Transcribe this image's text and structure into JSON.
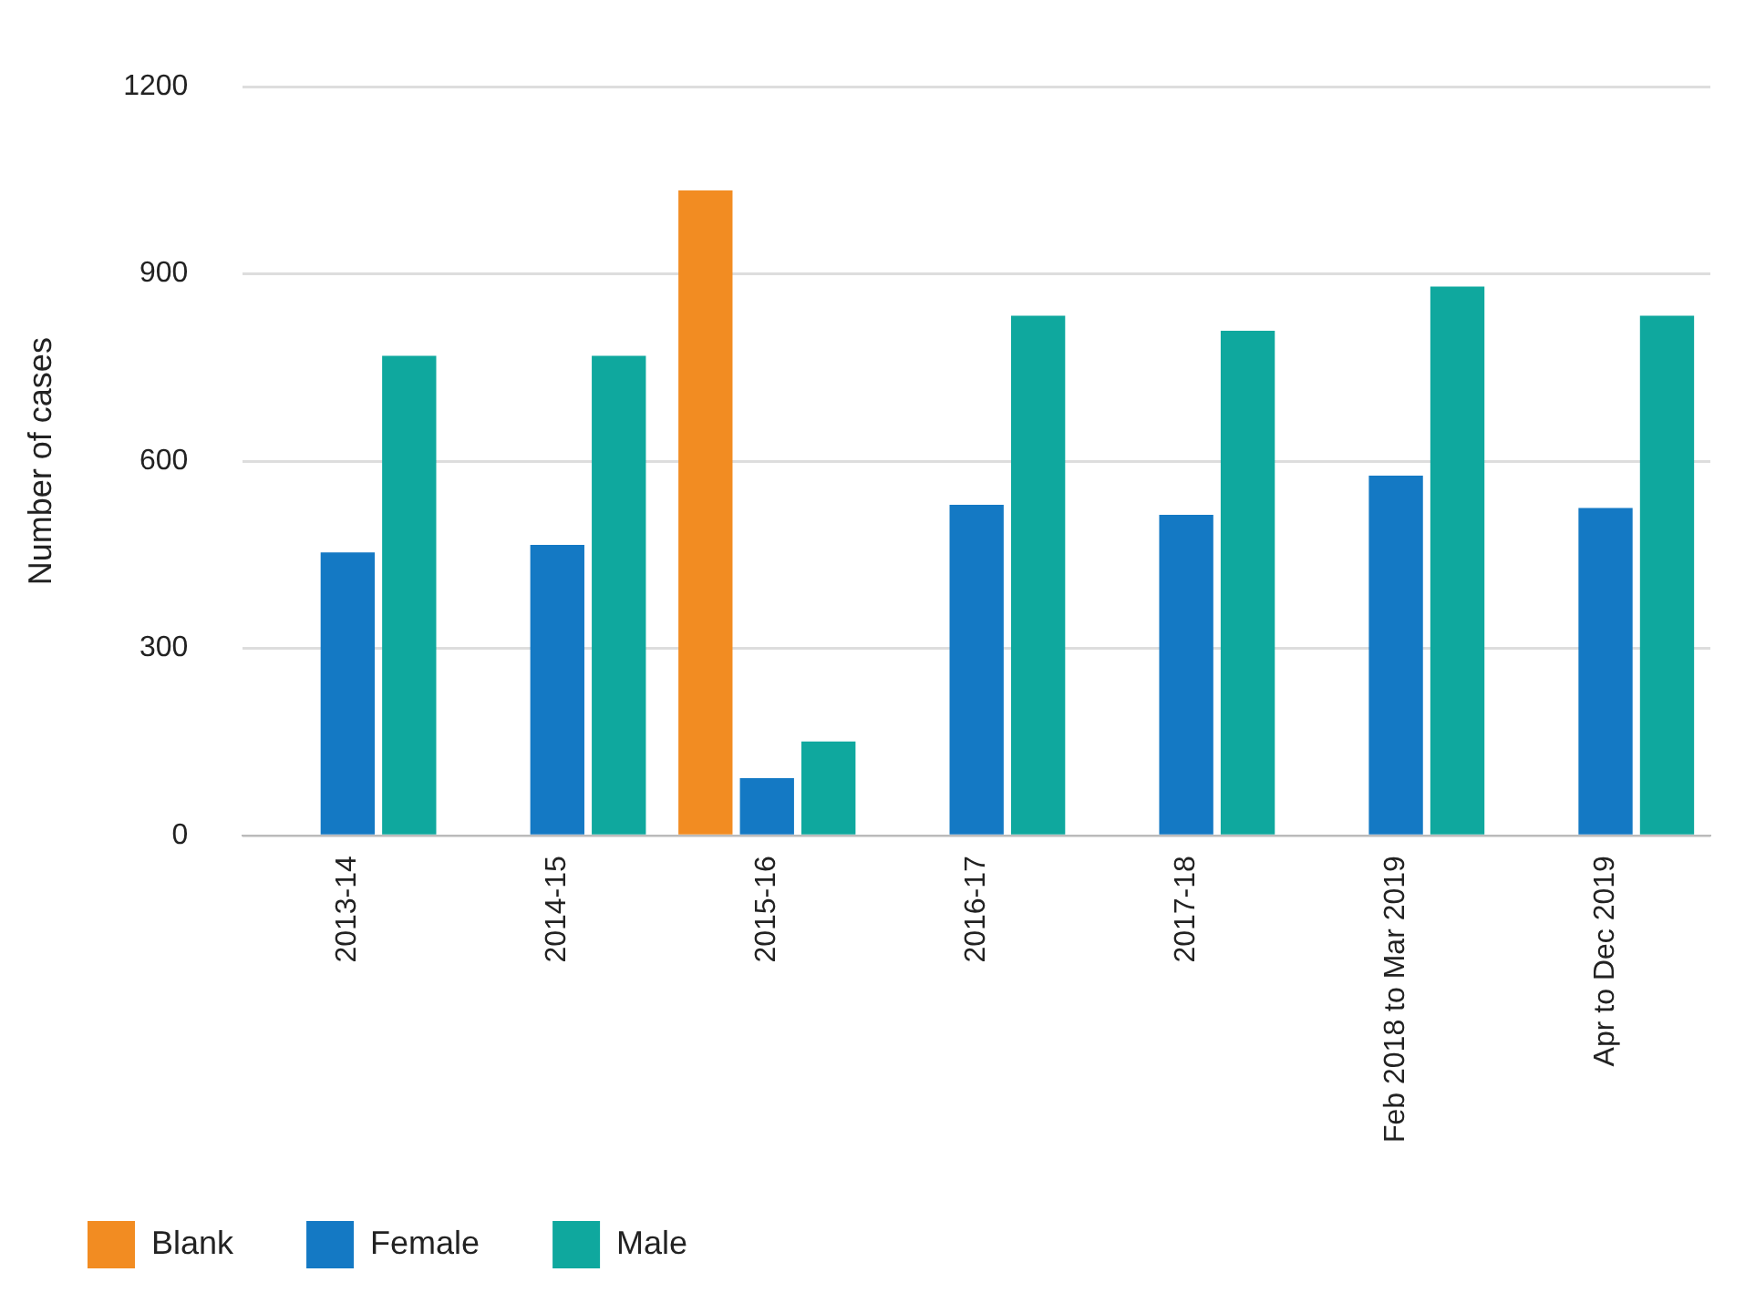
{
  "chart_data": {
    "type": "bar",
    "ylabel": "Number of cases",
    "categories": [
      "2013-14",
      "2014-15",
      "2015-16",
      "2016-17",
      "2017-18",
      "Feb 2018 to Mar 2019",
      "Apr to Dec 2019"
    ],
    "series": [
      {
        "name": "Blank",
        "color": "#f28c22",
        "values": [
          null,
          null,
          1034,
          null,
          null,
          null,
          null
        ]
      },
      {
        "name": "Female",
        "color": "#1479c4",
        "values": [
          454,
          466,
          92,
          530,
          514,
          577,
          525
        ]
      },
      {
        "name": "Male",
        "color": "#0fa89e",
        "values": [
          769,
          769,
          151,
          833,
          809,
          880,
          833
        ]
      }
    ],
    "ylim": [
      0,
      1200
    ],
    "yticks": [
      0,
      300,
      600,
      900,
      1200
    ],
    "grid": "y",
    "legend": "bottom left"
  }
}
